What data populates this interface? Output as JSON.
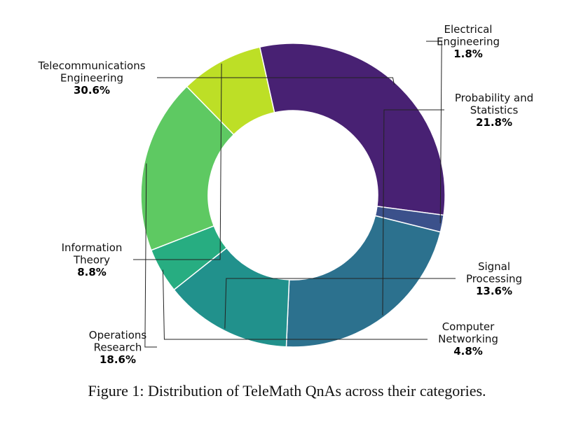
{
  "caption": "Figure 1: Distribution of TeleMath QnAs across their categories.",
  "chart_data": {
    "type": "pie",
    "donut": true,
    "title": "",
    "slices": [
      {
        "label": [
          "Telecommunications",
          "Engineering"
        ],
        "value": 30.6,
        "pct": "30.6%",
        "color": "#482173"
      },
      {
        "label": [
          "Electrical",
          "Engineering"
        ],
        "value": 1.8,
        "pct": "1.8%",
        "color": "#3b518b"
      },
      {
        "label": [
          "Probability and",
          "Statistics"
        ],
        "value": 21.8,
        "pct": "21.8%",
        "color": "#2c718e"
      },
      {
        "label": [
          "Signal",
          "Processing"
        ],
        "value": 13.6,
        "pct": "13.6%",
        "color": "#21918c"
      },
      {
        "label": [
          "Computer",
          "Networking"
        ],
        "value": 4.8,
        "pct": "4.8%",
        "color": "#27ad81"
      },
      {
        "label": [
          "Operations",
          "Research"
        ],
        "value": 18.6,
        "pct": "18.6%",
        "color": "#5ec962"
      },
      {
        "label": [
          "Information",
          "Theory"
        ],
        "value": 8.8,
        "pct": "8.8%",
        "color": "#bddf26"
      }
    ]
  }
}
